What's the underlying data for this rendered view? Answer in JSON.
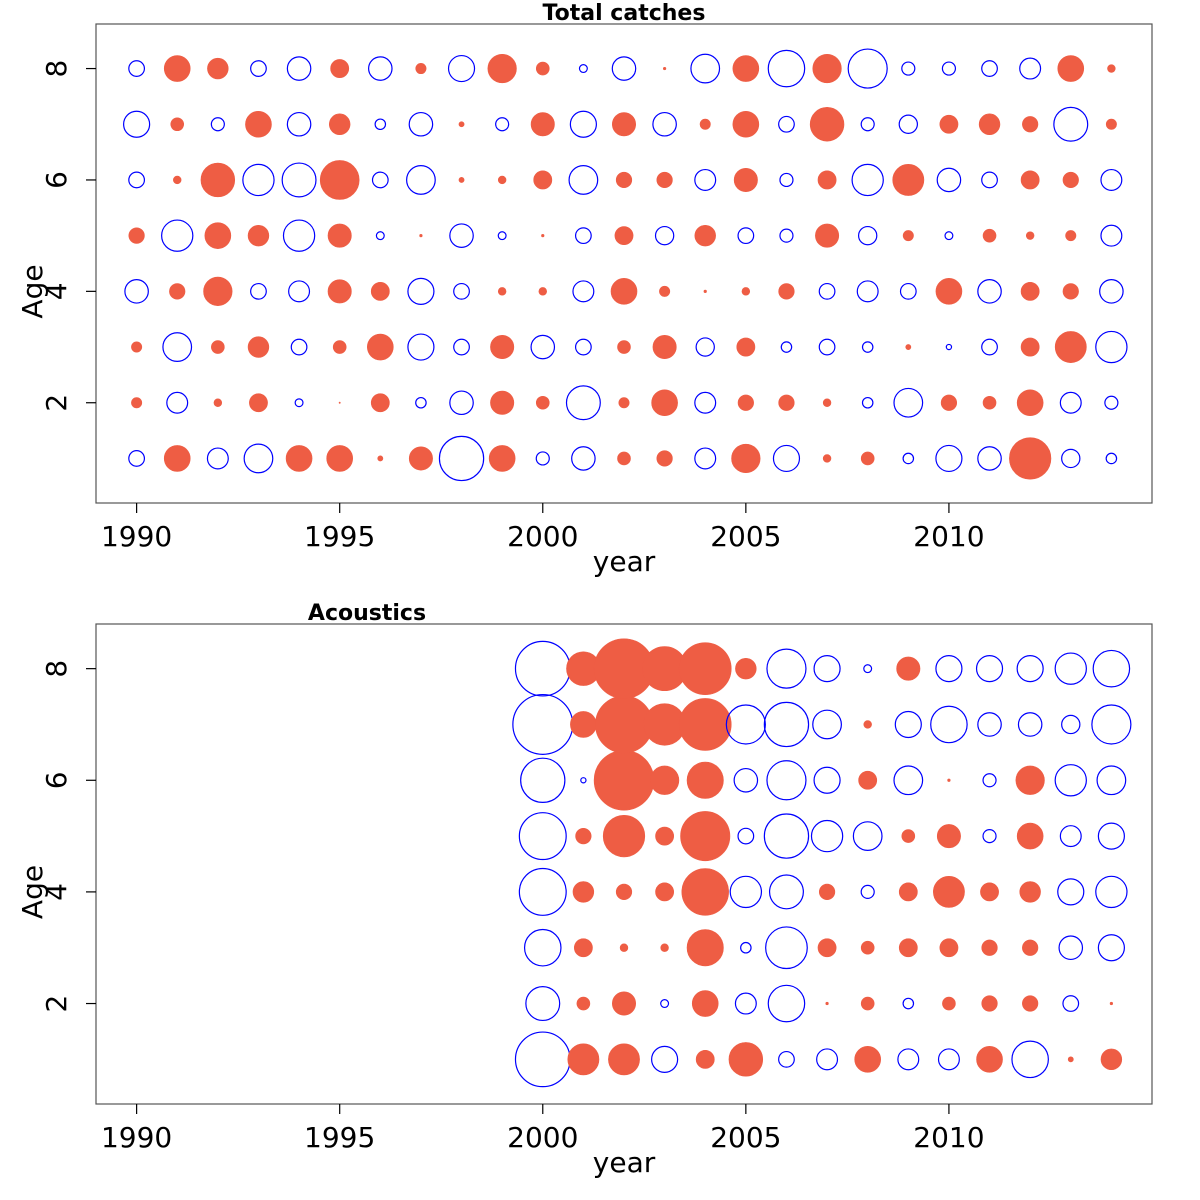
{
  "figure": {
    "colors": {
      "positive": "#ee5d44",
      "negative": "#0000ff"
    },
    "legend": "none",
    "grid": false
  },
  "chart_data": [
    {
      "type": "scatter",
      "subtype": "bubble",
      "title": "Total catches",
      "xlabel": "year",
      "ylabel": "Age",
      "xlim": [
        1989,
        2015
      ],
      "ylim": [
        0.2,
        8.8
      ],
      "xticks": [
        1990,
        1995,
        2000,
        2005,
        2010
      ],
      "yticks": [
        2,
        4,
        6,
        8
      ],
      "x": [
        1990,
        1991,
        1992,
        1993,
        1994,
        1995,
        1996,
        1997,
        1998,
        1999,
        2000,
        2001,
        2002,
        2003,
        2004,
        2005,
        2006,
        2007,
        2008,
        2009,
        2010,
        2011,
        2012,
        2013,
        2014
      ],
      "ages": [
        1,
        2,
        3,
        4,
        5,
        6,
        7,
        8
      ],
      "value_note": "sign: + filled red, - open blue; magnitude = relative bubble radius",
      "values": [
        [
          -6,
          4,
          4,
          -9,
          6,
          -6,
          -10,
          -6
        ],
        [
          10,
          -8,
          -11,
          6,
          -12,
          3,
          5,
          10
        ],
        [
          -8,
          3,
          5,
          11,
          10,
          13,
          -5,
          8
        ],
        [
          -11,
          7,
          8,
          -6,
          8,
          -12,
          10,
          -6
        ],
        [
          10,
          -3,
          -6,
          -8,
          -12,
          -13,
          -9,
          -9
        ],
        [
          10,
          0.5,
          5,
          9,
          9,
          15,
          8,
          7
        ],
        [
          2,
          7,
          10,
          7,
          -3,
          -6,
          -4,
          -9
        ],
        [
          9,
          -4,
          -10,
          -10,
          1,
          -11,
          -9,
          4
        ],
        [
          -17,
          -9,
          -6,
          -6,
          -9,
          2,
          2,
          -10
        ],
        [
          10,
          9,
          9,
          3,
          -3,
          3,
          -5,
          11
        ],
        [
          -5,
          5,
          -9,
          3,
          1,
          7,
          9,
          5
        ],
        [
          -9,
          -13,
          -6,
          -8,
          -6,
          -11,
          -10,
          -3
        ],
        [
          5,
          4,
          5,
          10,
          7,
          6,
          9,
          -9
        ],
        [
          6,
          10,
          9,
          4,
          -7,
          6,
          -9,
          1
        ],
        [
          -8,
          -8,
          -7,
          1,
          8,
          -8,
          4,
          -11
        ],
        [
          11,
          6,
          7,
          3,
          -6,
          9,
          10,
          10
        ],
        [
          -10,
          6,
          -4,
          6,
          -5,
          -5,
          -6,
          -14
        ],
        [
          3,
          3,
          -6,
          -6,
          9,
          7,
          13,
          11
        ],
        [
          5,
          -4,
          -4,
          -8,
          -7,
          -12,
          -5,
          -15
        ],
        [
          -4,
          -11,
          2,
          -6,
          4,
          12,
          -7,
          -5
        ],
        [
          -10,
          6,
          -2,
          10,
          -3,
          -9,
          7,
          -5
        ],
        [
          -9,
          5,
          -6,
          -9,
          5,
          -6,
          8,
          -6
        ],
        [
          16,
          10,
          7,
          7,
          3,
          7,
          6,
          -8
        ],
        [
          -7,
          -8,
          12,
          6,
          4,
          6,
          -13,
          10
        ],
        [
          -4,
          -5,
          -12,
          -9,
          -8,
          -8,
          4,
          3
        ]
      ]
    },
    {
      "type": "scatter",
      "subtype": "bubble",
      "title": "Acoustics",
      "xlabel": "year",
      "ylabel": "Age",
      "xlim": [
        1989,
        2015
      ],
      "ylim": [
        0.2,
        8.8
      ],
      "xticks": [
        1990,
        1995,
        2000,
        2005,
        2010
      ],
      "yticks": [
        2,
        4,
        6,
        8
      ],
      "x": [
        2000,
        2001,
        2002,
        2003,
        2004,
        2005,
        2006,
        2007,
        2008,
        2009,
        2010,
        2011,
        2012,
        2013,
        2014
      ],
      "ages": [
        1,
        2,
        3,
        4,
        5,
        6,
        7,
        8
      ],
      "value_note": "sign: + filled red, - open blue; magnitude = relative bubble radius",
      "values": [
        [
          -21,
          -13,
          -14,
          -18,
          -18,
          -17,
          -23,
          -21
        ],
        [
          12,
          5,
          7,
          8,
          6,
          -2,
          10,
          13
        ],
        [
          12,
          9,
          3,
          6,
          16,
          23,
          22,
          23
        ],
        [
          -10,
          -3,
          3,
          7,
          7,
          11,
          16,
          17
        ],
        [
          7,
          10,
          14,
          18,
          19,
          14,
          20,
          20
        ],
        [
          13,
          -8,
          -4,
          -12,
          -6,
          -9,
          -15,
          8
        ],
        [
          -6,
          -14,
          -16,
          -13,
          -17,
          -15,
          -17,
          -15
        ],
        [
          -8,
          1,
          7,
          6,
          -12,
          -10,
          -11,
          -10
        ],
        [
          10,
          5,
          5,
          -5,
          -11,
          7,
          3,
          -3
        ],
        [
          -8,
          -4,
          7,
          7,
          5,
          -11,
          -10,
          9
        ],
        [
          -8,
          5,
          7,
          12,
          9,
          1,
          -14,
          -10
        ],
        [
          10,
          6,
          6,
          7,
          -5,
          -5,
          -9,
          -10
        ],
        [
          -14,
          6,
          6,
          8,
          10,
          11,
          -9,
          -10
        ],
        [
          2,
          -6,
          -9,
          -10,
          -8,
          -12,
          -7,
          -12
        ],
        [
          8,
          1,
          -10,
          -12,
          -10,
          -11,
          -15,
          -14
        ]
      ]
    }
  ]
}
